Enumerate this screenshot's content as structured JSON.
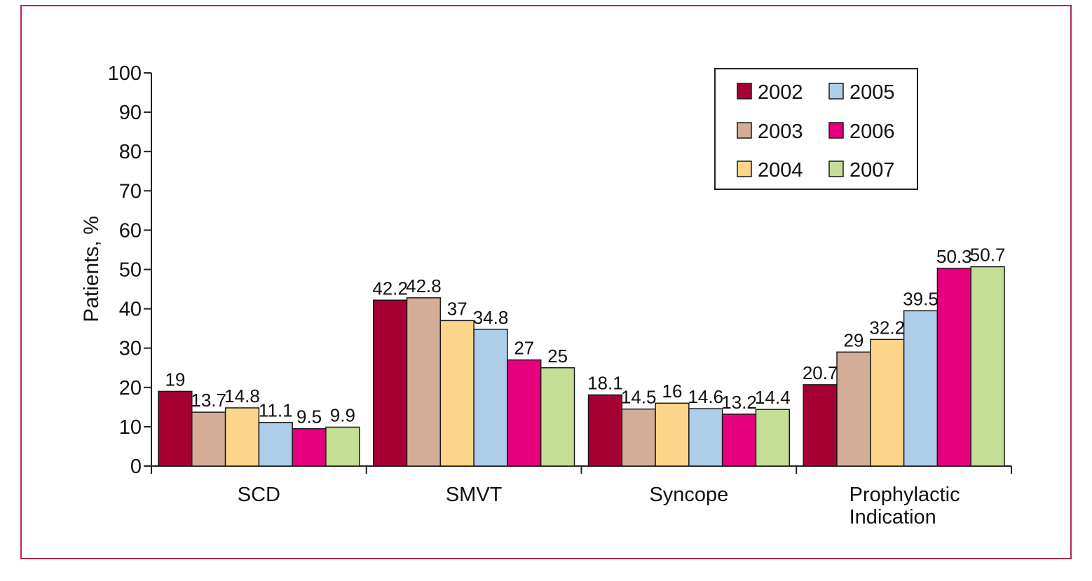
{
  "chart_data": {
    "type": "bar",
    "title": "",
    "xlabel": "",
    "ylabel": "Patients, %",
    "ylim": [
      0,
      100
    ],
    "yticks": [
      0,
      10,
      20,
      30,
      40,
      50,
      60,
      70,
      80,
      90,
      100
    ],
    "categories": [
      "SCD",
      "SMVT",
      "Syncope",
      "Prophylactic\nIndication"
    ],
    "series": [
      {
        "name": "2002",
        "color": "#a50034",
        "values": [
          19,
          42.2,
          18.1,
          20.7
        ]
      },
      {
        "name": "2003",
        "color": "#d4ad98",
        "values": [
          13.7,
          42.8,
          14.5,
          29
        ]
      },
      {
        "name": "2004",
        "color": "#fdd58a",
        "values": [
          14.8,
          37,
          16,
          32.2
        ]
      },
      {
        "name": "2005",
        "color": "#aecde9",
        "values": [
          11.1,
          34.8,
          14.6,
          39.5
        ]
      },
      {
        "name": "2006",
        "color": "#e6007e",
        "values": [
          9.5,
          27,
          13.2,
          50.3
        ]
      },
      {
        "name": "2007",
        "color": "#c5de95",
        "values": [
          9.9,
          25,
          14.4,
          50.7
        ]
      }
    ],
    "data_labels": [
      [
        "19",
        "42.2",
        "18.1",
        "20.7"
      ],
      [
        "13.7",
        "42.8",
        "14.5",
        "29"
      ],
      [
        "14.8",
        "37",
        "16",
        "32.2"
      ],
      [
        "11.1",
        "34.8",
        "14.6",
        "39.5"
      ],
      [
        "9.5",
        "27",
        "13.2",
        "50.3"
      ],
      [
        "9.9",
        "25",
        "14.4",
        "50.7"
      ]
    ],
    "legend": {
      "placement": "top-right",
      "columns": 2,
      "order": [
        "2002",
        "2005",
        "2003",
        "2006",
        "2004",
        "2007"
      ]
    },
    "grid": false,
    "frame_color": "#b22a4a"
  }
}
